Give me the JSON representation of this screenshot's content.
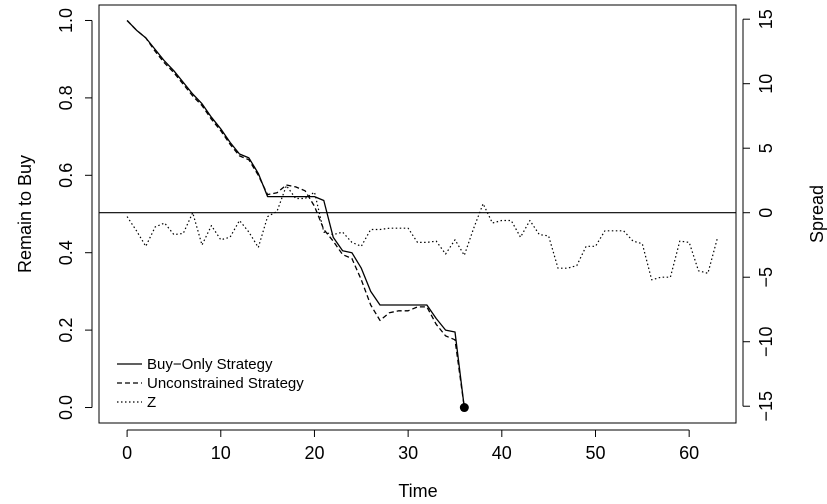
{
  "chart_data": {
    "type": "line",
    "xlabel": "Time",
    "ylabel_left": "Remain to Buy",
    "ylabel_right": "Spread",
    "x_ticks": [
      0,
      10,
      20,
      30,
      40,
      50,
      60
    ],
    "y_left_ticks": [
      0.0,
      0.2,
      0.4,
      0.6,
      0.8,
      1.0
    ],
    "y_left_tick_labels": [
      "0.0",
      "0.2",
      "0.4",
      "0.6",
      "0.8",
      "1.0"
    ],
    "y_right_ticks": [
      -15,
      -10,
      -5,
      0,
      5,
      10,
      15
    ],
    "y_right_tick_labels": [
      "−15",
      "−10",
      "−5",
      "0",
      "5",
      "10",
      "15"
    ],
    "xlim": [
      -3,
      65
    ],
    "ylim_left": [
      -0.04,
      1.04
    ],
    "ylim_right": [
      -16.3,
      16.1
    ],
    "reference_line_right": 0,
    "grid": false,
    "legend_position": "bottom-left",
    "series": [
      {
        "name": "Buy−Only Strategy",
        "axis": "left",
        "style": "solid",
        "x": [
          0,
          1,
          2,
          3,
          4,
          5,
          6,
          7,
          8,
          9,
          10,
          11,
          12,
          13,
          14,
          15,
          16,
          17,
          18,
          19,
          20,
          21,
          22,
          23,
          24,
          25,
          26,
          27,
          28,
          29,
          30,
          31,
          32,
          33,
          34,
          35,
          36
        ],
        "y": [
          1.0,
          0.975,
          0.955,
          0.925,
          0.895,
          0.87,
          0.84,
          0.81,
          0.785,
          0.75,
          0.72,
          0.685,
          0.655,
          0.645,
          0.605,
          0.545,
          0.545,
          0.545,
          0.545,
          0.545,
          0.545,
          0.535,
          0.44,
          0.405,
          0.4,
          0.36,
          0.3,
          0.265,
          0.265,
          0.265,
          0.265,
          0.265,
          0.265,
          0.23,
          0.2,
          0.195,
          0.0
        ]
      },
      {
        "name": "Unconstrained Strategy",
        "axis": "left",
        "style": "dashed",
        "x": [
          0,
          1,
          2,
          3,
          4,
          5,
          6,
          7,
          8,
          9,
          10,
          11,
          12,
          13,
          14,
          15,
          16,
          17,
          18,
          19,
          20,
          21,
          22,
          23,
          24,
          25,
          26,
          27,
          28,
          29,
          30,
          31,
          32,
          33,
          34,
          35,
          36
        ],
        "y": [
          1.0,
          0.975,
          0.955,
          0.92,
          0.89,
          0.865,
          0.835,
          0.805,
          0.78,
          0.745,
          0.715,
          0.68,
          0.65,
          0.64,
          0.6,
          0.55,
          0.555,
          0.575,
          0.57,
          0.56,
          0.52,
          0.46,
          0.43,
          0.395,
          0.385,
          0.33,
          0.265,
          0.225,
          0.245,
          0.25,
          0.25,
          0.26,
          0.26,
          0.215,
          0.185,
          0.175,
          0.0
        ]
      },
      {
        "name": "Z",
        "axis": "right",
        "style": "dotted",
        "x": [
          0,
          1,
          2,
          3,
          4,
          5,
          6,
          7,
          8,
          9,
          10,
          11,
          12,
          13,
          14,
          15,
          16,
          17,
          18,
          19,
          20,
          21,
          22,
          23,
          24,
          25,
          26,
          27,
          28,
          29,
          30,
          31,
          32,
          33,
          34,
          35,
          36,
          37,
          38,
          39,
          40,
          41,
          42,
          43,
          44,
          45,
          46,
          47,
          48,
          49,
          50,
          51,
          52,
          53,
          54,
          55,
          56,
          57,
          58,
          59,
          60,
          61,
          62,
          63
        ],
        "y": [
          -0.3,
          -1.4,
          -2.6,
          -1.1,
          -0.8,
          -1.7,
          -1.6,
          0.0,
          -2.5,
          -1.0,
          -2.1,
          -1.9,
          -0.6,
          -1.5,
          -2.7,
          -0.3,
          0.1,
          2.1,
          1.1,
          1.1,
          1.6,
          -1.5,
          -1.7,
          -1.5,
          -2.3,
          -2.6,
          -1.3,
          -1.3,
          -1.2,
          -1.2,
          -1.2,
          -2.3,
          -2.3,
          -2.2,
          -3.2,
          -2.1,
          -3.3,
          -1.2,
          0.7,
          -0.8,
          -0.6,
          -0.6,
          -1.9,
          -0.6,
          -1.7,
          -1.8,
          -4.3,
          -4.3,
          -4.1,
          -2.6,
          -2.6,
          -1.4,
          -1.4,
          -1.4,
          -2.2,
          -2.4,
          -5.2,
          -5.0,
          -5.0,
          -2.2,
          -2.3,
          -4.5,
          -4.7,
          -2.0
        ]
      }
    ],
    "end_marker": {
      "x": 36,
      "y": 0.0
    }
  },
  "legend": {
    "items": [
      {
        "label": "Buy−Only Strategy",
        "style": "solid"
      },
      {
        "label": "Unconstrained Strategy",
        "style": "dashed"
      },
      {
        "label": "Z",
        "style": "dotted"
      }
    ]
  }
}
